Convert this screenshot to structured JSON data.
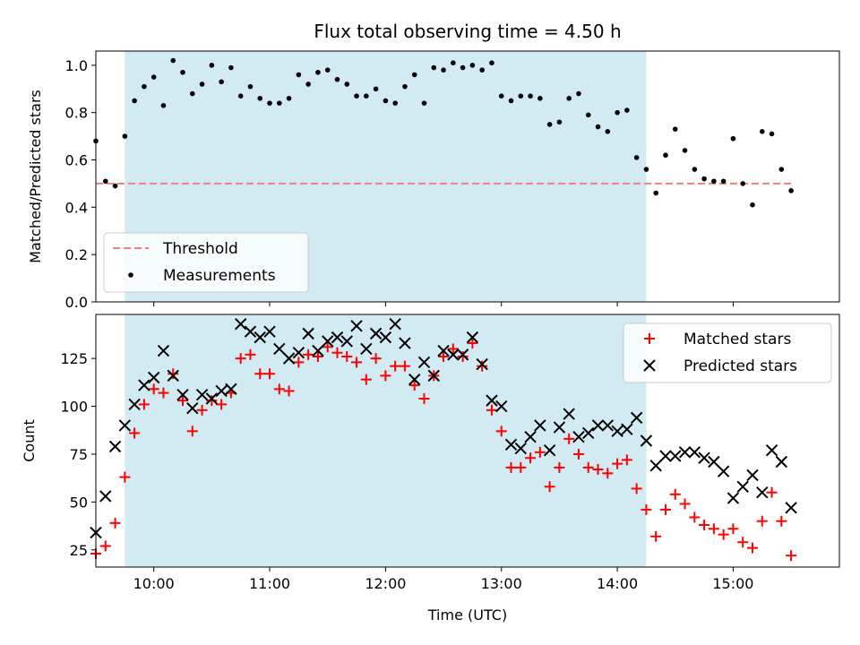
{
  "chart_data": [
    {
      "type": "scatter",
      "title": "Flux total observing time = 4.50 h",
      "xlabel": "",
      "ylabel": "Matched/Predicted stars",
      "xlim": [
        "09:30",
        "15:55"
      ],
      "ylim": [
        0,
        1.06
      ],
      "yticks": [
        "0.0",
        "0.2",
        "0.4",
        "0.6",
        "0.8",
        "1.0"
      ],
      "grid": false,
      "legend_position": "lower-left",
      "highlight_span": [
        "09:45",
        "14:15"
      ],
      "threshold": {
        "name": "Threshold",
        "value": 0.5,
        "x": [
          "09:30",
          "15:30"
        ],
        "color": "#f08080"
      },
      "series": [
        {
          "name": "Measurements",
          "color": "#000000",
          "x": [
            "09:30",
            "09:35",
            "09:40",
            "09:45",
            "09:50",
            "09:55",
            "10:00",
            "10:05",
            "10:10",
            "10:15",
            "10:20",
            "10:25",
            "10:30",
            "10:35",
            "10:40",
            "10:45",
            "10:50",
            "10:55",
            "11:00",
            "11:05",
            "11:10",
            "11:15",
            "11:20",
            "11:25",
            "11:30",
            "11:35",
            "11:40",
            "11:45",
            "11:50",
            "11:55",
            "12:00",
            "12:05",
            "12:10",
            "12:15",
            "12:20",
            "12:25",
            "12:30",
            "12:35",
            "12:40",
            "12:45",
            "12:50",
            "12:55",
            "13:00",
            "13:05",
            "13:10",
            "13:15",
            "13:20",
            "13:25",
            "13:30",
            "13:35",
            "13:40",
            "13:45",
            "13:50",
            "13:55",
            "14:00",
            "14:05",
            "14:10",
            "14:15",
            "14:20",
            "14:25",
            "14:30",
            "14:35",
            "14:40",
            "14:45",
            "14:50",
            "14:55",
            "15:00",
            "15:05",
            "15:10",
            "15:15",
            "15:20",
            "15:25",
            "15:30"
          ],
          "values": [
            0.68,
            0.51,
            0.49,
            0.7,
            0.85,
            0.91,
            0.95,
            0.83,
            1.02,
            0.97,
            0.88,
            0.92,
            1.0,
            0.93,
            0.99,
            0.87,
            0.91,
            0.86,
            0.84,
            0.84,
            0.86,
            0.96,
            0.92,
            0.97,
            0.98,
            0.94,
            0.92,
            0.87,
            0.87,
            0.9,
            0.85,
            0.84,
            0.91,
            0.96,
            0.84,
            0.99,
            0.98,
            1.01,
            0.99,
            1.0,
            0.98,
            1.01,
            0.87,
            0.85,
            0.87,
            0.87,
            0.86,
            0.75,
            0.76,
            0.86,
            0.88,
            0.79,
            0.74,
            0.72,
            0.8,
            0.81,
            0.61,
            0.56,
            0.46,
            0.62,
            0.73,
            0.64,
            0.56,
            0.52,
            0.51,
            0.51,
            0.69,
            0.5,
            0.41,
            0.72,
            0.71,
            0.56,
            0.47
          ]
        }
      ]
    },
    {
      "type": "scatter",
      "title": "",
      "xlabel": "Time (UTC)",
      "ylabel": "Count",
      "xlim": [
        "09:30",
        "15:55"
      ],
      "ylim": [
        16,
        148
      ],
      "xticks": [
        "10:00",
        "11:00",
        "12:00",
        "13:00",
        "14:00",
        "15:00"
      ],
      "yticks": [
        "25",
        "50",
        "75",
        "100",
        "125"
      ],
      "grid": false,
      "legend_position": "upper-right",
      "highlight_span": [
        "09:45",
        "14:15"
      ],
      "series": [
        {
          "name": "Matched stars",
          "marker": "+",
          "color": "#ff0000",
          "x": [
            "09:30",
            "09:35",
            "09:40",
            "09:45",
            "09:50",
            "09:55",
            "10:00",
            "10:05",
            "10:10",
            "10:15",
            "10:20",
            "10:25",
            "10:30",
            "10:35",
            "10:40",
            "10:45",
            "10:50",
            "10:55",
            "11:00",
            "11:05",
            "11:10",
            "11:15",
            "11:20",
            "11:25",
            "11:30",
            "11:35",
            "11:40",
            "11:45",
            "11:50",
            "11:55",
            "12:00",
            "12:05",
            "12:10",
            "12:15",
            "12:20",
            "12:25",
            "12:30",
            "12:35",
            "12:40",
            "12:45",
            "12:50",
            "12:55",
            "13:00",
            "13:05",
            "13:10",
            "13:15",
            "13:20",
            "13:25",
            "13:30",
            "13:35",
            "13:40",
            "13:45",
            "13:50",
            "13:55",
            "14:00",
            "14:05",
            "14:10",
            "14:15",
            "14:20",
            "14:25",
            "14:30",
            "14:35",
            "14:40",
            "14:45",
            "14:50",
            "14:55",
            "15:00",
            "15:05",
            "15:10",
            "15:15",
            "15:20",
            "15:25",
            "15:30"
          ],
          "values": [
            23,
            27,
            39,
            63,
            86,
            101,
            109,
            107,
            117,
            103,
            87,
            98,
            103,
            101,
            107,
            125,
            127,
            117,
            117,
            109,
            108,
            123,
            127,
            126,
            131,
            128,
            126,
            123,
            114,
            125,
            116,
            121,
            121,
            111,
            104,
            116,
            126,
            130,
            126,
            133,
            121,
            98,
            87,
            68,
            68,
            73,
            76,
            58,
            68,
            83,
            75,
            68,
            67,
            65,
            70,
            72,
            57,
            46,
            32,
            46,
            54,
            49,
            42,
            38,
            36,
            33,
            36,
            29,
            26,
            40,
            55,
            40,
            22
          ]
        },
        {
          "name": "Predicted stars",
          "marker": "x",
          "color": "#000000",
          "x": [
            "09:30",
            "09:35",
            "09:40",
            "09:45",
            "09:50",
            "09:55",
            "10:00",
            "10:05",
            "10:10",
            "10:15",
            "10:20",
            "10:25",
            "10:30",
            "10:35",
            "10:40",
            "10:45",
            "10:50",
            "10:55",
            "11:00",
            "11:05",
            "11:10",
            "11:15",
            "11:20",
            "11:25",
            "11:30",
            "11:35",
            "11:40",
            "11:45",
            "11:50",
            "11:55",
            "12:00",
            "12:05",
            "12:10",
            "12:15",
            "12:20",
            "12:25",
            "12:30",
            "12:35",
            "12:40",
            "12:45",
            "12:50",
            "12:55",
            "13:00",
            "13:05",
            "13:10",
            "13:15",
            "13:20",
            "13:25",
            "13:30",
            "13:35",
            "13:40",
            "13:45",
            "13:50",
            "13:55",
            "14:00",
            "14:05",
            "14:10",
            "14:15",
            "14:20",
            "14:25",
            "14:30",
            "14:35",
            "14:40",
            "14:45",
            "14:50",
            "14:55",
            "15:00",
            "15:05",
            "15:10",
            "15:15",
            "15:20",
            "15:25",
            "15:30"
          ],
          "values": [
            34,
            53,
            79,
            90,
            101,
            111,
            115,
            129,
            116,
            106,
            99,
            106,
            104,
            108,
            109,
            143,
            139,
            136,
            139,
            130,
            125,
            128,
            138,
            129,
            134,
            136,
            134,
            142,
            130,
            138,
            136,
            143,
            133,
            114,
            123,
            116,
            129,
            127,
            127,
            136,
            122,
            103,
            100,
            80,
            78,
            84,
            90,
            77,
            89,
            96,
            84,
            86,
            90,
            90,
            87,
            88,
            94,
            82,
            69,
            74,
            74,
            76,
            76,
            73,
            71,
            66,
            52,
            58,
            64,
            55,
            77,
            71,
            47
          ]
        }
      ]
    }
  ]
}
